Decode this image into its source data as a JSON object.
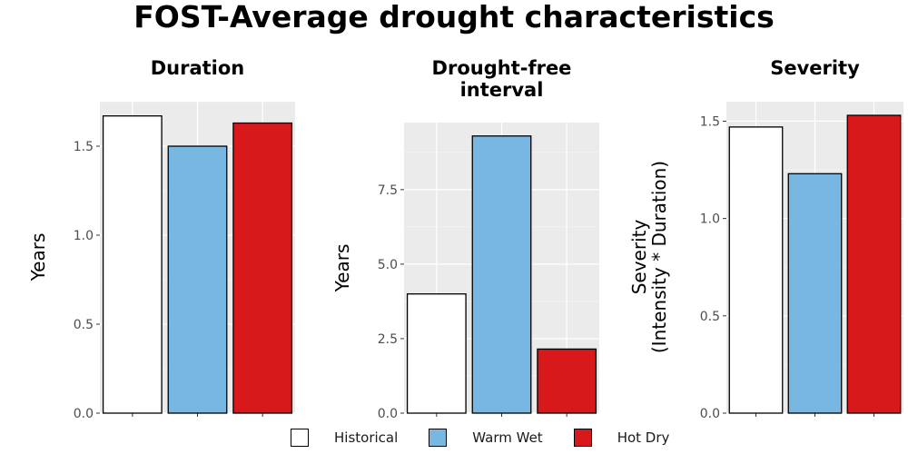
{
  "title": "FOST-Average drought characteristics",
  "legend": {
    "items": [
      {
        "label": "Historical",
        "color": "#ffffff"
      },
      {
        "label": "Warm Wet",
        "color": "#77b7e2"
      },
      {
        "label": "Hot Dry",
        "color": "#d7191c"
      }
    ]
  },
  "chart_data": [
    {
      "type": "bar",
      "title": "Duration",
      "ylabel": "Years",
      "categories": [
        "Historical",
        "Warm Wet",
        "Hot Dry"
      ],
      "values": [
        1.67,
        1.5,
        1.63
      ],
      "ylim": [
        0,
        1.75
      ],
      "yticks": [
        0,
        0.5,
        1.0,
        1.5
      ],
      "ytick_labels": [
        "0.0",
        "0.5",
        "1.0",
        "1.5"
      ],
      "grid": true,
      "legend_position": "bottom"
    },
    {
      "type": "bar",
      "title": "Drought-free\ninterval",
      "ylabel": "Years",
      "categories": [
        "Historical",
        "Warm Wet",
        "Hot Dry"
      ],
      "values": [
        4.0,
        9.3,
        2.15
      ],
      "ylim": [
        0,
        9.75
      ],
      "yticks": [
        0,
        2.5,
        5.0,
        7.5
      ],
      "ytick_labels": [
        "0.0",
        "2.5",
        "5.0",
        "7.5"
      ],
      "grid": true,
      "legend_position": "bottom"
    },
    {
      "type": "bar",
      "title": "Severity",
      "ylabel": "Severity\n(Intensity * Duration)",
      "categories": [
        "Historical",
        "Warm Wet",
        "Hot Dry"
      ],
      "values": [
        1.47,
        1.23,
        1.53
      ],
      "ylim": [
        0,
        1.6
      ],
      "yticks": [
        0,
        0.5,
        1.0,
        1.5
      ],
      "ytick_labels": [
        "0.0",
        "0.5",
        "1.0",
        "1.5"
      ],
      "grid": true,
      "legend_position": "bottom"
    }
  ]
}
